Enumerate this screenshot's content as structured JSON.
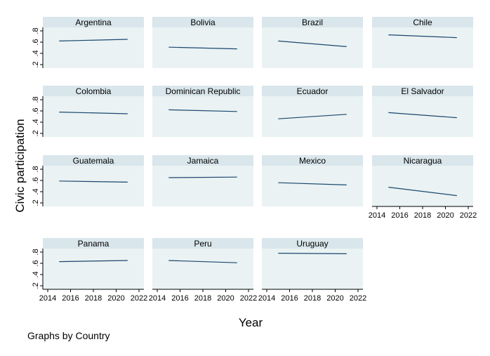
{
  "chart_data": {
    "type": "line",
    "ylabel": "Civic participation",
    "xlabel": "Year",
    "note": "Graphs by Country",
    "x_ticks": [
      2014,
      2016,
      2018,
      2020,
      2022
    ],
    "y_ticks": [
      ".2",
      ".4",
      ".6",
      ".8"
    ],
    "ylim": [
      0.2,
      0.8
    ],
    "xlim": [
      2014,
      2022
    ],
    "grid": false,
    "panels": [
      {
        "name": "Argentina",
        "x": [
          2015,
          2021
        ],
        "y": [
          0.62,
          0.65
        ]
      },
      {
        "name": "Bolivia",
        "x": [
          2015,
          2021
        ],
        "y": [
          0.51,
          0.48
        ]
      },
      {
        "name": "Brazil",
        "x": [
          2015,
          2021
        ],
        "y": [
          0.62,
          0.52
        ]
      },
      {
        "name": "Chile",
        "x": [
          2015,
          2021
        ],
        "y": [
          0.73,
          0.68
        ]
      },
      {
        "name": "Colombia",
        "x": [
          2015,
          2021
        ],
        "y": [
          0.58,
          0.55
        ]
      },
      {
        "name": "Dominican Republic",
        "x": [
          2015,
          2021
        ],
        "y": [
          0.62,
          0.59
        ]
      },
      {
        "name": "Ecuador",
        "x": [
          2015,
          2021
        ],
        "y": [
          0.46,
          0.54
        ]
      },
      {
        "name": "El Salvador",
        "x": [
          2015,
          2021
        ],
        "y": [
          0.57,
          0.48
        ]
      },
      {
        "name": "Guatemala",
        "x": [
          2015,
          2021
        ],
        "y": [
          0.59,
          0.57
        ]
      },
      {
        "name": "Jamaica",
        "x": [
          2015,
          2021
        ],
        "y": [
          0.65,
          0.66
        ]
      },
      {
        "name": "Mexico",
        "x": [
          2015,
          2021
        ],
        "y": [
          0.56,
          0.52
        ]
      },
      {
        "name": "Nicaragua",
        "x": [
          2015,
          2021
        ],
        "y": [
          0.48,
          0.33
        ]
      },
      {
        "name": "Panama",
        "x": [
          2015,
          2021
        ],
        "y": [
          0.63,
          0.65
        ]
      },
      {
        "name": "Peru",
        "x": [
          2015,
          2021
        ],
        "y": [
          0.65,
          0.61
        ]
      },
      {
        "name": "Uruguay",
        "x": [
          2015,
          2021
        ],
        "y": [
          0.78,
          0.77
        ]
      }
    ],
    "colors": {
      "plot_bg": "#eaf2f3",
      "strip_bg": "#d9e6eb",
      "line": "#1a476f",
      "axis": "#000000"
    }
  }
}
